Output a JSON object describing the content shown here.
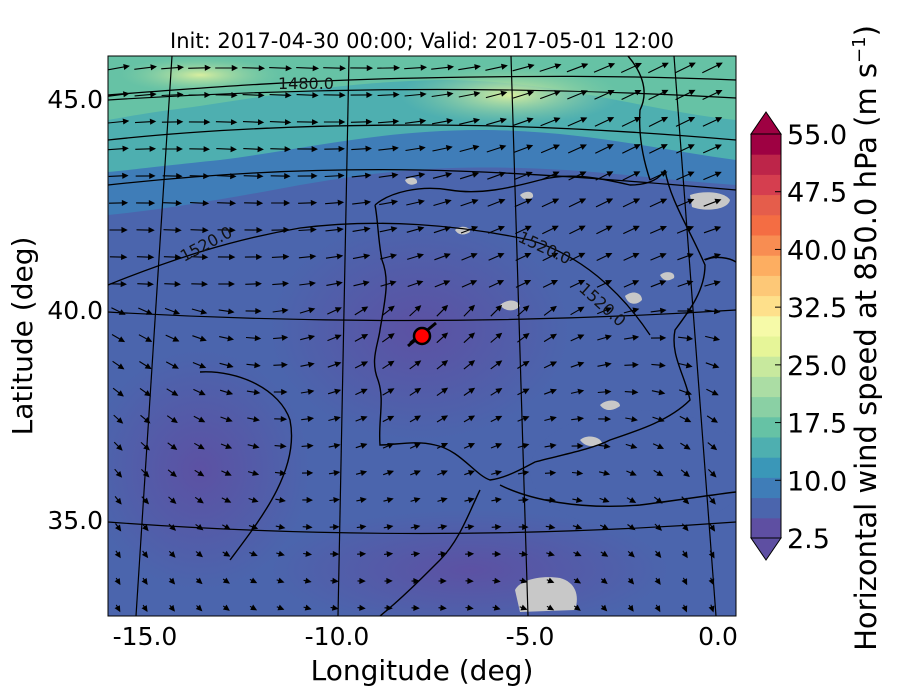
{
  "chart_data": {
    "type": "map",
    "title": "Init: 2017-04-30 00:00; Valid: 2017-05-01 12:00",
    "xlabel": "Longitude (deg)",
    "ylabel": "Latitude (deg)",
    "xlim": [
      -16,
      0.2
    ],
    "ylim": [
      32.8,
      46.2
    ],
    "x_ticks": [
      "-15.0",
      "-10.0",
      "-5.0",
      "0.0"
    ],
    "y_ticks": [
      "45.0",
      "40.0",
      "35.0"
    ],
    "colorbar": {
      "label": "Horizontal wind speed at 850.0 hPa (m s",
      "label_sup": "−1",
      "label_close": ")",
      "min": 2.5,
      "max": 55.0,
      "step": 2.5,
      "ticks": [
        "55.0",
        "47.5",
        "40.0",
        "32.5",
        "25.0",
        "17.5",
        "10.0",
        "2.5"
      ],
      "colors": [
        "#5e4fa2",
        "#4b65ad",
        "#3f7db8",
        "#3a97b8",
        "#4eafb0",
        "#66c2a5",
        "#8ad0a4",
        "#abdda4",
        "#c8e99e",
        "#e6f598",
        "#f6faa8",
        "#fee08b",
        "#fdc877",
        "#fdae61",
        "#f88d52",
        "#f46d43",
        "#e55d4b",
        "#d53e4f",
        "#bd2549",
        "#9e0142"
      ],
      "extend": "both"
    },
    "contour_labels": [
      {
        "text": "1480.0",
        "lon": -11.0,
        "lat": 45.3,
        "angle": 0
      },
      {
        "text": "1520.0",
        "lon": -12.9,
        "lat": 41.7,
        "angle": -28
      },
      {
        "text": "1520.0",
        "lon": -4.5,
        "lat": 41.9,
        "angle": 25
      },
      {
        "text": "1520.0",
        "lon": -3.0,
        "lat": 40.3,
        "angle": 42
      }
    ],
    "marker": {
      "lon": -7.7,
      "lat": 39.5,
      "color": "#ff0000"
    }
  }
}
